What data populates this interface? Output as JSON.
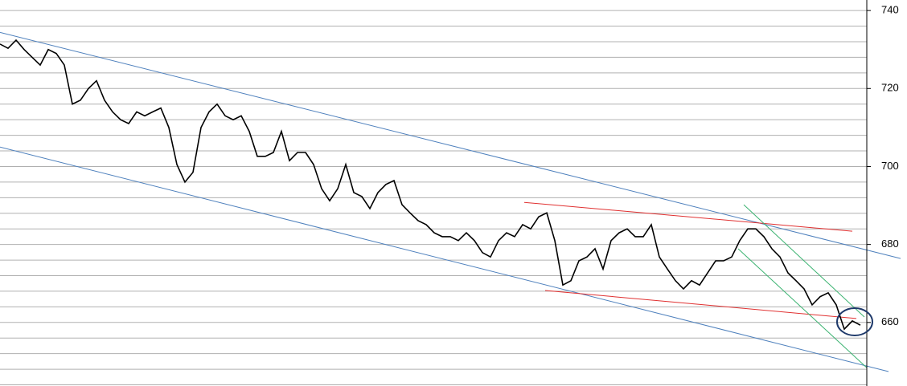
{
  "chart_data": {
    "type": "line",
    "x": [
      0,
      1,
      2,
      3,
      4,
      5,
      6,
      7,
      8,
      9,
      10,
      11,
      12,
      13,
      14,
      15,
      16,
      17,
      18,
      19,
      20,
      21,
      22,
      23,
      24,
      25,
      26,
      27,
      28,
      29,
      30,
      31,
      32,
      33,
      34,
      35,
      36,
      37,
      38,
      39,
      40,
      41,
      42,
      43,
      44,
      45,
      46,
      47,
      48,
      49,
      50,
      51,
      52,
      53,
      54,
      55,
      56,
      57,
      58,
      59,
      60,
      61,
      62,
      63,
      64,
      65,
      66,
      67,
      68,
      69,
      70,
      71,
      72,
      73,
      74,
      75,
      76,
      77,
      78,
      79,
      80,
      81,
      82,
      83,
      84,
      85,
      86,
      87,
      88,
      89,
      90,
      91,
      92,
      93,
      94,
      95,
      96,
      97,
      98,
      99,
      100,
      101,
      102,
      103,
      104,
      105,
      106,
      107
    ],
    "series": [
      {
        "color": "#000000",
        "values": [
          731.4,
          730.3,
          732.4,
          730,
          728,
          726,
          730,
          729,
          726,
          716,
          717,
          720,
          722,
          717,
          714,
          712,
          711,
          714,
          713,
          714,
          715,
          710,
          700.5,
          696,
          698.5,
          710,
          714,
          716,
          713,
          712,
          713,
          709,
          702.6,
          702.6,
          703.6,
          709,
          701.5,
          703.6,
          703.6,
          700.5,
          694.3,
          691.2,
          694.3,
          700.5,
          693.3,
          692.3,
          689.2,
          693.3,
          695.4,
          696.4,
          690.2,
          688.1,
          686.1,
          685.1,
          683,
          682,
          682,
          681,
          683,
          681,
          677.9,
          676.8,
          681,
          683,
          682,
          685.1,
          684,
          687.1,
          688.1,
          681,
          669.6,
          670.7,
          675.8,
          676.8,
          678.9,
          673.7,
          681,
          683,
          684,
          682,
          682,
          685.1,
          676.8,
          673.7,
          670.7,
          668.6,
          670.7,
          669.6,
          672.7,
          675.8,
          675.8,
          676.8,
          681,
          684,
          684,
          682,
          678.9,
          676.8,
          672.7,
          670.7,
          668.6,
          664.5,
          666.6,
          667.6,
          664.5,
          658.3,
          660.4,
          659.3
        ]
      }
    ],
    "trendlines": [
      {
        "color": "#4f81bd",
        "x": [
          0,
          112
        ],
        "values": [
          734.4,
          676.4
        ]
      },
      {
        "color": "#4f81bd",
        "x": [
          0,
          110.5
        ],
        "values": [
          705,
          647.4
        ]
      },
      {
        "color": "#e03030",
        "x": [
          65.2,
          106
        ],
        "values": [
          690.8,
          683.4
        ]
      },
      {
        "color": "#e03030",
        "x": [
          67.8,
          106.5
        ],
        "values": [
          668.2,
          661
        ]
      },
      {
        "color": "#3cb371",
        "x": [
          92.5,
          107.5
        ],
        "values": [
          690.2,
          661.4
        ]
      },
      {
        "color": "#3cb371",
        "x": [
          91.8,
          107.8
        ],
        "values": [
          678.9,
          648.4
        ]
      }
    ],
    "xlim": [
      0,
      112.8
    ],
    "ylim": [
      643.7,
      742.7
    ],
    "yticks": [
      660,
      680,
      700,
      720,
      740
    ],
    "ygrid": [
      644,
      648,
      652,
      656,
      660,
      664,
      668,
      672,
      676,
      680,
      684,
      688,
      692,
      696,
      700,
      704,
      708,
      712,
      716,
      720,
      724,
      728,
      732,
      736,
      740
    ],
    "grid": true
  }
}
